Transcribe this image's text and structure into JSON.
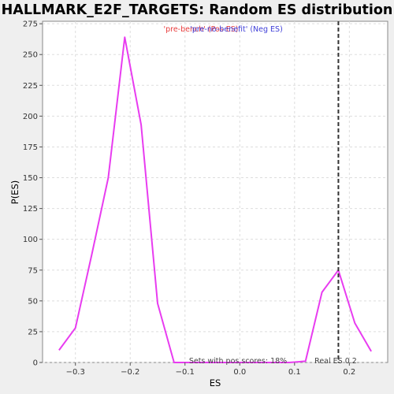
{
  "chart_data": {
    "type": "line",
    "title": "HALLMARK_E2F_TARGETS: Random ES distribution",
    "xlabel": "ES",
    "ylabel": "P(ES)",
    "xlim": [
      -0.36,
      0.27
    ],
    "ylim": [
      0,
      277
    ],
    "grid": true,
    "x_ticks": [
      -0.3,
      -0.2,
      -0.1,
      0.0,
      0.1,
      0.2
    ],
    "x_tick_labels": [
      "−0.3",
      "−0.2",
      "−0.1",
      "0.0",
      "0.1",
      "0.2"
    ],
    "y_ticks": [
      0,
      25,
      50,
      75,
      100,
      125,
      150,
      175,
      200,
      225,
      250,
      275
    ],
    "y_tick_labels": [
      "0",
      "25",
      "50",
      "75",
      "100",
      "125",
      "150",
      "175",
      "200",
      "225",
      "250",
      "275"
    ],
    "series": [
      {
        "color": "#e83cf0",
        "x": [
          -0.33,
          -0.3,
          -0.27,
          -0.24,
          -0.21,
          -0.18,
          -0.15,
          -0.12,
          -0.09,
          -0.06,
          -0.03,
          0.0,
          0.03,
          0.06,
          0.09,
          0.12,
          0.15,
          0.18,
          0.21,
          0.24
        ],
        "y": [
          10,
          28,
          88,
          150,
          264,
          193,
          48,
          0,
          0,
          0,
          0,
          0,
          0,
          0,
          0,
          1,
          57,
          75,
          32,
          9
        ]
      }
    ],
    "real_es": 0.18,
    "legend": {
      "pos_label": "'pre-bench' (Pos ES)",
      "pos_color": "#e83c3c",
      "neg_label": "'pre-no-benefit' (Neg ES)",
      "neg_color": "#4040d8",
      "placement": "top-center"
    },
    "annotations": {
      "sets_text": "Sets with pos scores: 18%",
      "real_es_text": "Real ES 0.2"
    }
  }
}
